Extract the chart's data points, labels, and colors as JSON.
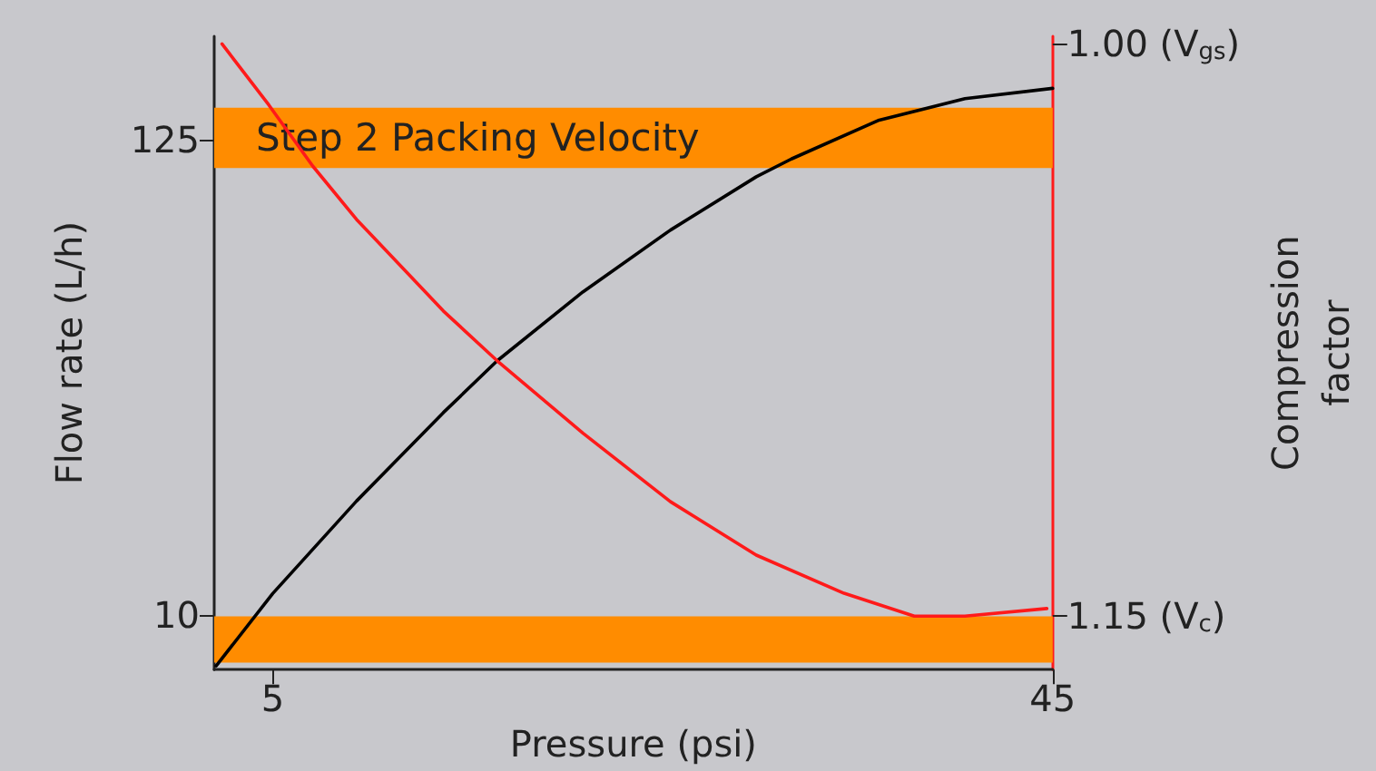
{
  "chart_data": {
    "type": "line",
    "xlabel": "Pressure (psi)",
    "ylabel": "Flow rate (L/h)",
    "y2label": "Compression factor",
    "xlim": [
      2,
      45
    ],
    "xticks": [
      5,
      45
    ],
    "ylim": [
      -3.3,
      150
    ],
    "yticks": [
      10,
      125
    ],
    "y2lim": [
      1.164,
      0.998
    ],
    "y2ticks": [
      {
        "value": 1.0,
        "label": "1.00 (V$_{gs}$)"
      },
      {
        "value": 1.15,
        "label": "1.15 (V$_{c}$)"
      }
    ],
    "series": [
      {
        "color": "#000000",
        "x": [
          2.1,
          5,
          9.3,
          13.75,
          16.5,
          20.9,
          25.4,
          29.8,
          31.6,
          36.1,
          40.5,
          45
        ],
        "values": [
          -2.4,
          15.1,
          37.5,
          58.9,
          71.4,
          88.1,
          103.1,
          116.0,
          120.3,
          129.7,
          134.9,
          137.4
        ]
      },
      {
        "color": "#ff1a1a",
        "axis": "y2",
        "x": [
          2.4,
          4.8,
          7.05,
          9.3,
          13.75,
          16.5,
          20.9,
          25.4,
          29.8,
          34.3,
          37.9,
          40.5,
          44.7
        ],
        "values": [
          1.0,
          1.016,
          1.032,
          1.046,
          1.07,
          1.083,
          1.102,
          1.12,
          1.134,
          1.144,
          1.15,
          1.15,
          1.148
        ]
      }
    ],
    "bands": [
      {
        "axis": "y",
        "from": 118.1,
        "to": 132.7,
        "label": "Step 2 Packing Velocity",
        "color": "#ff8c00"
      },
      {
        "axis": "y",
        "from": -1.6,
        "to": 9.6,
        "color": "#ff8c00"
      }
    ],
    "marker": "none"
  }
}
